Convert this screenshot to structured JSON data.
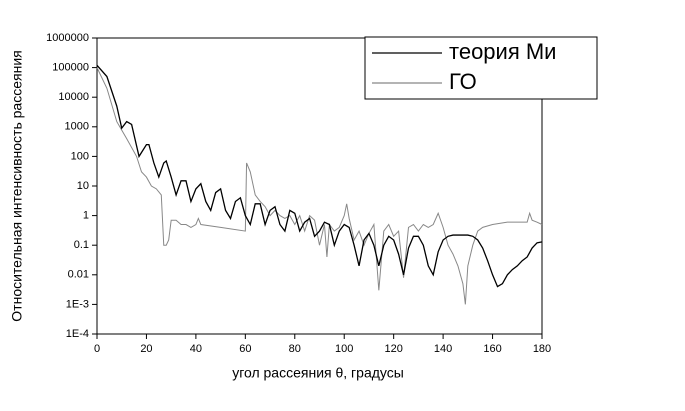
{
  "chart_data": {
    "type": "line",
    "xlabel": "угол рассеяния θ, градусы",
    "ylabel": "Относительная интенсивность рассеяния",
    "xlim": [
      0,
      180
    ],
    "xticks": [
      0,
      20,
      40,
      60,
      80,
      100,
      120,
      140,
      160,
      180
    ],
    "ylim": [
      0.0001,
      1000000
    ],
    "log_y": true,
    "yticks": [
      {
        "value": 0.0001,
        "label": "1E-4"
      },
      {
        "value": 0.001,
        "label": "1E-3"
      },
      0.01,
      0.1,
      1,
      10,
      100,
      1000,
      10000,
      100000,
      1000000
    ],
    "legend_position": "upper right",
    "series": [
      {
        "name": "теория Ми",
        "color": "#000000",
        "x": [
          0,
          4,
          8,
          10,
          12,
          14,
          17,
          20,
          21,
          23,
          25,
          27,
          28,
          30,
          32,
          34,
          36,
          38,
          40,
          42,
          44,
          46,
          48,
          50,
          52,
          54,
          56,
          58,
          60,
          62,
          64,
          66,
          68,
          70,
          72,
          74,
          76,
          78,
          80,
          82,
          84,
          86,
          88,
          90,
          92,
          94,
          96,
          98,
          100,
          102,
          104,
          106,
          108,
          110,
          112,
          114,
          116,
          118,
          120,
          122,
          124,
          126,
          128,
          130,
          132,
          134,
          136,
          138,
          140,
          142,
          144,
          146,
          148,
          150,
          152,
          154,
          156,
          158,
          160,
          162,
          164,
          166,
          168,
          170,
          172,
          174,
          176,
          178,
          180
        ],
        "values": [
          120000,
          50000,
          5000,
          900,
          1500,
          1200,
          100,
          250,
          250,
          60,
          20,
          60,
          70,
          20,
          5,
          15,
          15,
          3,
          8,
          12,
          3,
          1.5,
          6,
          8,
          1.5,
          0.8,
          3,
          4,
          1,
          0.5,
          2.5,
          2.5,
          0.5,
          1.5,
          2,
          0.5,
          0.3,
          1.5,
          1.2,
          0.3,
          0.6,
          0.8,
          0.2,
          0.3,
          0.6,
          0.5,
          0.1,
          0.3,
          0.5,
          0.4,
          0.1,
          0.02,
          0.15,
          0.25,
          0.1,
          0.02,
          0.1,
          0.2,
          0.15,
          0.05,
          0.01,
          0.08,
          0.2,
          0.2,
          0.1,
          0.02,
          0.01,
          0.06,
          0.15,
          0.2,
          0.22,
          0.22,
          0.22,
          0.22,
          0.2,
          0.15,
          0.08,
          0.03,
          0.01,
          0.004,
          0.005,
          0.01,
          0.015,
          0.02,
          0.03,
          0.04,
          0.08,
          0.12,
          0.13
        ]
      },
      {
        "name": "ГО",
        "color": "#888888",
        "x": [
          0,
          4,
          8,
          12,
          16,
          18,
          20,
          22,
          24,
          26,
          27,
          28,
          29,
          30,
          32,
          34,
          36,
          38,
          40,
          41,
          42,
          50,
          60,
          60.5,
          62,
          64,
          66,
          68,
          70,
          72,
          74,
          76,
          78,
          80,
          82,
          84,
          86,
          88,
          90,
          92,
          93,
          94,
          96,
          98,
          100,
          101,
          102,
          104,
          106,
          108,
          110,
          112,
          114,
          116,
          118,
          120,
          122,
          124,
          126,
          128,
          130,
          132,
          134,
          136,
          138,
          140,
          142,
          144,
          146,
          148,
          149,
          150,
          152,
          154,
          156,
          160,
          166,
          170,
          174,
          175,
          176,
          178,
          180
        ],
        "values": [
          100000,
          20000,
          1500,
          400,
          100,
          30,
          20,
          10,
          8,
          5,
          0.1,
          0.1,
          0.15,
          0.7,
          0.7,
          0.5,
          0.5,
          0.4,
          0.5,
          0.8,
          0.5,
          0.4,
          0.3,
          60,
          30,
          5,
          3,
          2,
          1,
          1.5,
          1,
          0.8,
          1,
          0.5,
          1,
          0.3,
          1,
          0.7,
          0.1,
          0.5,
          0.04,
          0.5,
          0.3,
          0.4,
          1,
          2.5,
          0.8,
          0.15,
          0.3,
          0.1,
          0.25,
          0.5,
          0.003,
          0.3,
          0.5,
          0.2,
          0.3,
          0.008,
          0.4,
          0.5,
          0.3,
          0.5,
          0.4,
          0.5,
          1.2,
          0.4,
          0.1,
          0.05,
          0.02,
          0.005,
          0.001,
          0.02,
          0.1,
          0.3,
          0.4,
          0.5,
          0.6,
          0.6,
          0.6,
          1.2,
          0.7,
          0.6,
          0.5
        ]
      }
    ]
  }
}
